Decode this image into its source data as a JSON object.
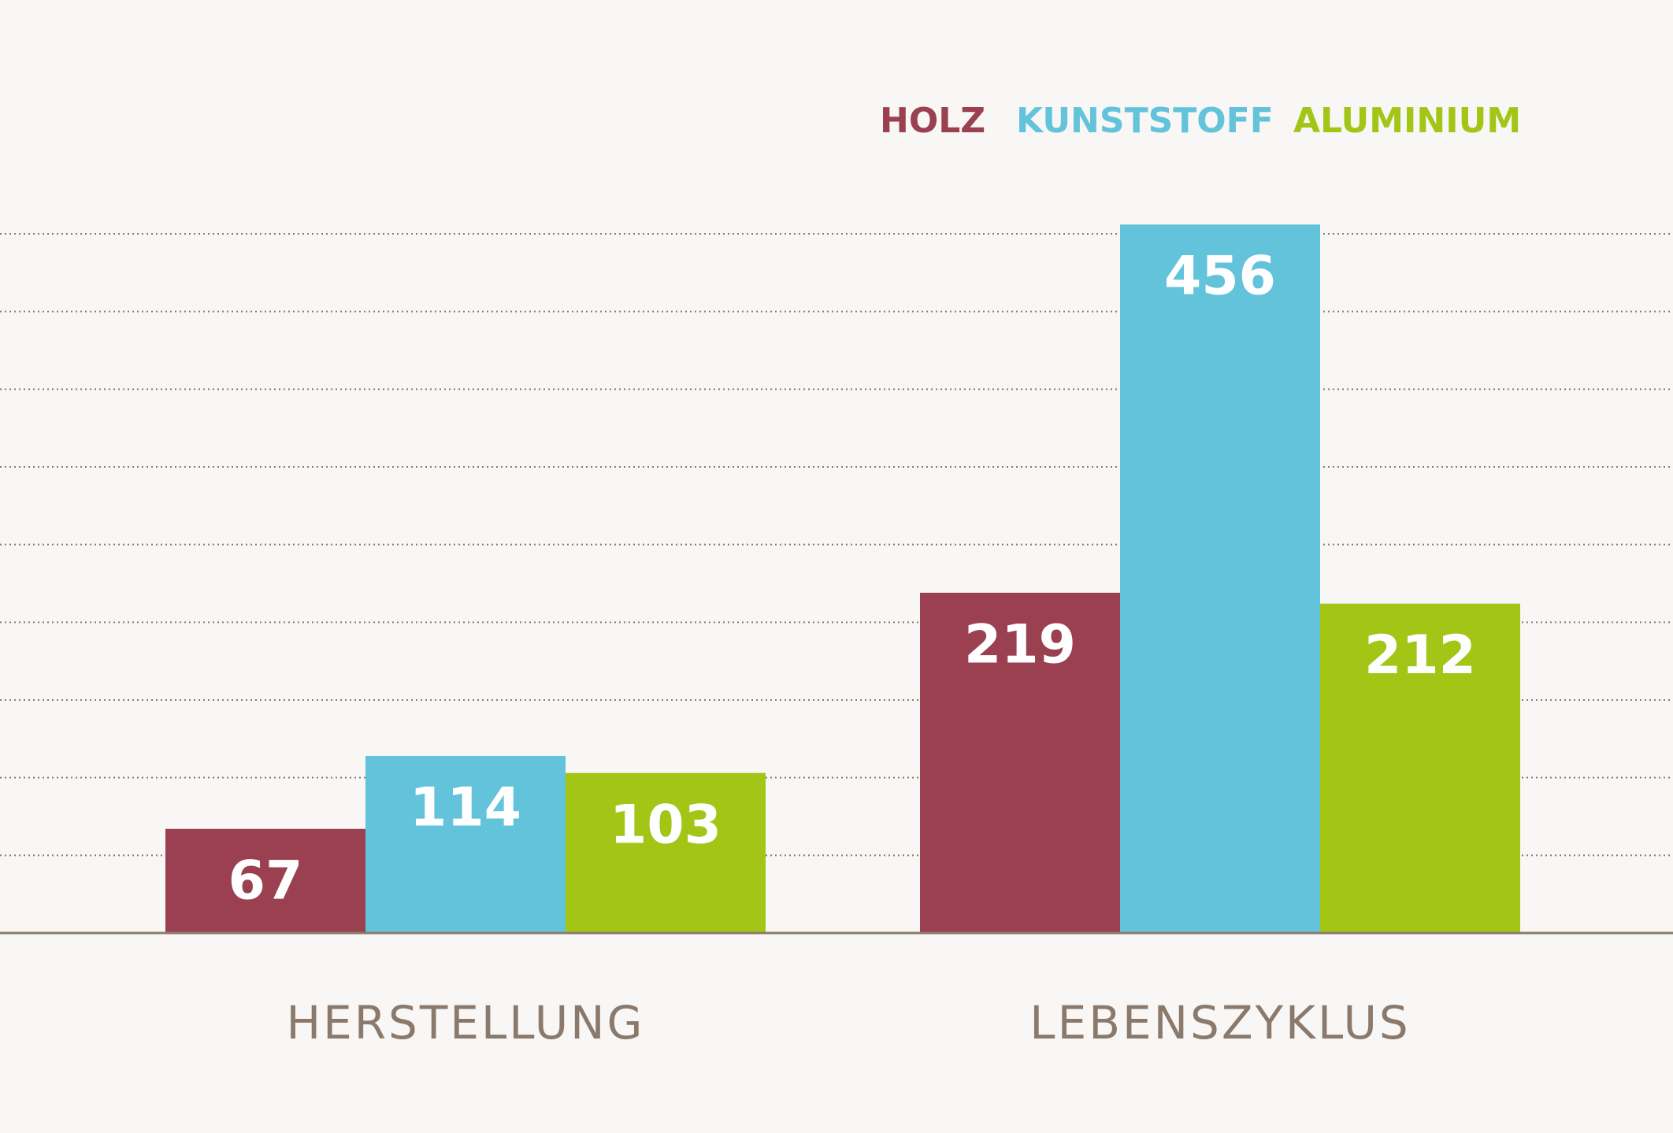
{
  "chart_data": {
    "type": "bar",
    "categories": [
      "HERSTELLUNG",
      "LEBENSZYKLUS"
    ],
    "series": [
      {
        "name": "HOLZ",
        "color": "#9a4050",
        "values": [
          67,
          219
        ]
      },
      {
        "name": "KUNSTSTOFF",
        "color": "#62c3da",
        "values": [
          114,
          456
        ]
      },
      {
        "name": "ALUMINIUM",
        "color": "#a2c516",
        "values": [
          103,
          212
        ]
      }
    ],
    "ylim": [
      0,
      600
    ],
    "yticks": [
      0,
      50,
      100,
      150,
      200,
      250,
      300,
      350,
      400,
      450
    ],
    "grid": true,
    "legend": "top-right"
  }
}
